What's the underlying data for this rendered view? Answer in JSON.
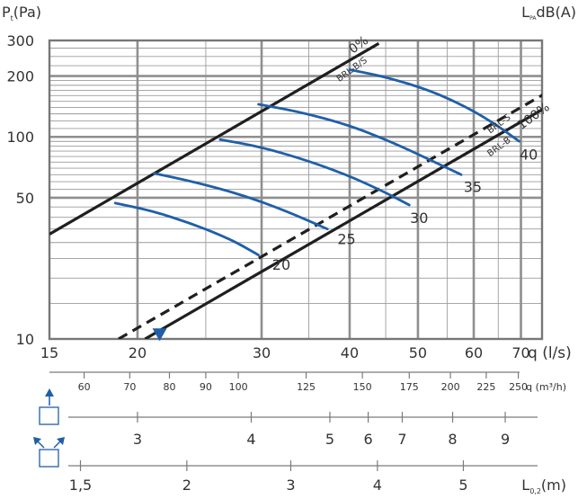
{
  "chart_data": {
    "type": "line",
    "x_scale": "log",
    "y_scale": "log",
    "xlim": [
      15,
      75
    ],
    "ylim": [
      10,
      300
    ],
    "y_axis_label": {
      "main": "P",
      "sub": "t",
      "unit": "(Pa)"
    },
    "right_top_label": {
      "main": "L",
      "sub": "PA",
      "unit": "dB(A)"
    },
    "x_axis_label": "q (l/s)",
    "x_ticks": [
      {
        "v": 15,
        "label": "15"
      },
      {
        "v": 20,
        "label": "20"
      },
      {
        "v": 30,
        "label": "30"
      },
      {
        "v": 40,
        "label": "40"
      },
      {
        "v": 50,
        "label": "50"
      },
      {
        "v": 60,
        "label": "60"
      },
      {
        "v": 70,
        "label": "70"
      }
    ],
    "y_ticks": [
      {
        "v": 10,
        "label": "10"
      },
      {
        "v": 50,
        "label": "50"
      },
      {
        "v": 100,
        "label": "100"
      },
      {
        "v": 200,
        "label": "200"
      },
      {
        "v": 300,
        "label": "300"
      }
    ],
    "grid": true,
    "opening_lines": [
      {
        "name": "0%",
        "style": "solid",
        "color": "#1f1f1f",
        "points": [
          [
            15,
            33
          ],
          [
            44,
            290
          ]
        ]
      },
      {
        "name": "100%",
        "style": "solid",
        "color": "#1f1f1f",
        "points": [
          [
            20.5,
            10
          ],
          [
            76,
            140
          ]
        ]
      },
      {
        "name": "BRL-S",
        "style": "dashed",
        "color": "#1f1f1f",
        "points": [
          [
            18.8,
            10
          ],
          [
            76,
            165
          ]
        ]
      }
    ],
    "line_labels": [
      {
        "text": "0%",
        "x": 41.5,
        "y": 275
      },
      {
        "text": "100%",
        "x": 73.5,
        "y": 122
      },
      {
        "text": "BRL-S",
        "x": 65.5,
        "y": 113
      },
      {
        "text": "BRL-B",
        "x": 65.5,
        "y": 87
      },
      {
        "text": "BRL-B/S",
        "x": 40.5,
        "y": 210
      }
    ],
    "series": [
      {
        "name": "20",
        "points": [
          [
            18.6,
            47
          ],
          [
            21,
            43
          ],
          [
            24,
            37
          ],
          [
            27.2,
            31
          ],
          [
            29.7,
            26
          ]
        ]
      },
      {
        "name": "25",
        "points": [
          [
            21.1,
            66
          ],
          [
            24,
            60
          ],
          [
            28,
            52
          ],
          [
            32.5,
            43
          ],
          [
            37.2,
            35
          ]
        ]
      },
      {
        "name": "30",
        "points": [
          [
            26.2,
            97
          ],
          [
            30,
            89
          ],
          [
            35,
            76
          ],
          [
            40,
            64
          ],
          [
            45,
            53
          ],
          [
            48.6,
            46
          ]
        ]
      },
      {
        "name": "35",
        "points": [
          [
            29.7,
            145
          ],
          [
            34,
            133
          ],
          [
            40,
            114
          ],
          [
            46,
            94
          ],
          [
            52,
            77
          ],
          [
            57.6,
            65
          ]
        ]
      },
      {
        "name": "40",
        "points": [
          [
            40,
            215
          ],
          [
            45,
            198
          ],
          [
            52,
            170
          ],
          [
            59,
            139
          ],
          [
            65,
            113
          ],
          [
            69.6,
            95
          ]
        ]
      }
    ],
    "noise_labels": [
      {
        "text": "20",
        "x": 32.0,
        "y": 23.0
      },
      {
        "text": "25",
        "x": 39.6,
        "y": 30.8
      },
      {
        "text": "30",
        "x": 50.2,
        "y": 39.3
      },
      {
        "text": "35",
        "x": 59.8,
        "y": 56.0
      },
      {
        "text": "40",
        "x": 71.8,
        "y": 81.0
      }
    ],
    "marker": {
      "shape": "triangle-down",
      "x": 21.5,
      "y": 10.6,
      "color": "#1f5fa8"
    }
  },
  "secondary_scales": [
    {
      "name": "q-m3h",
      "unit": "q (m³/h)",
      "ticks": [
        {
          "q": 16.8,
          "label": "60"
        },
        {
          "q": 19.5,
          "label": "70"
        },
        {
          "q": 22.2,
          "label": "80"
        },
        {
          "q": 25.0,
          "label": "90"
        },
        {
          "q": 27.8,
          "label": "100"
        },
        {
          "q": 34.7,
          "label": "125"
        },
        {
          "q": 41.7,
          "label": "150"
        },
        {
          "q": 48.6,
          "label": "175"
        },
        {
          "q": 55.6,
          "label": "200"
        },
        {
          "q": 62.5,
          "label": "225"
        },
        {
          "q": 69.4,
          "label": "250"
        }
      ]
    },
    {
      "name": "throw-one-direction",
      "unit": "",
      "ticks": [
        {
          "q": 20.0,
          "label": "3"
        },
        {
          "q": 29.0,
          "label": "4"
        },
        {
          "q": 37.5,
          "label": "5"
        },
        {
          "q": 42.5,
          "label": "6"
        },
        {
          "q": 47.5,
          "label": "7"
        },
        {
          "q": 56.0,
          "label": "8"
        },
        {
          "q": 66.5,
          "label": "9"
        }
      ]
    },
    {
      "name": "throw-two-directions",
      "unit": "L (m)",
      "unit_parts": {
        "main": "L",
        "sub": "0,2",
        "unit": "(m)"
      },
      "ticks": [
        {
          "q": 16.6,
          "label": "1,5"
        },
        {
          "q": 23.5,
          "label": "2"
        },
        {
          "q": 33.0,
          "label": "3"
        },
        {
          "q": 43.8,
          "label": "4"
        },
        {
          "q": 58.0,
          "label": "5"
        }
      ]
    }
  ],
  "colors": {
    "curves": "#1f5fa8",
    "lines": "#1f1f1f",
    "grid": "#8f8f8f",
    "icons": "#1f5fa8"
  },
  "icons": [
    "arrow-up-icon",
    "outlet-box-icon",
    "arrows-diagonal-icon",
    "outlet-box-icon"
  ]
}
